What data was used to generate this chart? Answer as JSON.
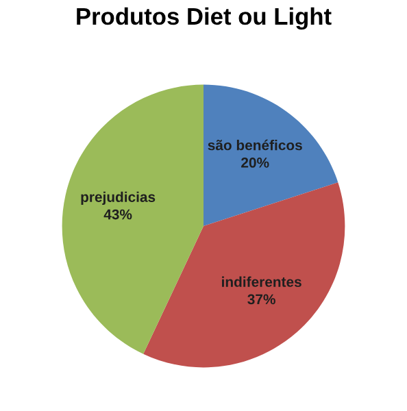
{
  "chart_data": {
    "type": "pie",
    "title": "Produtos Diet ou Light",
    "categories": [
      "são benéficos",
      "indiferentes",
      "prejudicias"
    ],
    "values": [
      20,
      37,
      43
    ],
    "colors": [
      "#4f81bd",
      "#c0504d",
      "#9bbb59"
    ],
    "value_labels": [
      "20%",
      "37%",
      "43%"
    ],
    "legend": false
  }
}
